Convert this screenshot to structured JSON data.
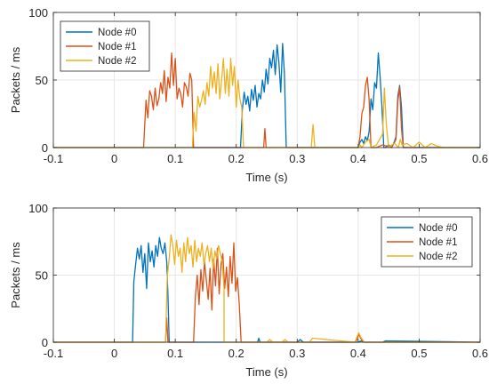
{
  "chart_data": [
    {
      "type": "line",
      "xlabel": "Time (s)",
      "ylabel": "Packets / ms",
      "xlim": [
        -0.1,
        0.6
      ],
      "ylim": [
        0,
        100
      ],
      "xticks": [
        -0.1,
        0,
        0.1,
        0.2,
        0.3,
        0.4,
        0.5,
        0.6
      ],
      "xtick_labels": [
        "-0.1",
        "0",
        "0.1",
        "0.2",
        "0.3",
        "0.4",
        "0.5",
        "0.6"
      ],
      "yticks": [
        0,
        50,
        100
      ],
      "ytick_labels": [
        "0",
        "50",
        "100"
      ],
      "grid": true,
      "legend_position": "top-left",
      "series": [
        {
          "name": "Node #0",
          "color": "#0072BD",
          "x": [
            -0.1,
            0.207,
            0.21,
            0.213,
            0.216,
            0.219,
            0.222,
            0.225,
            0.228,
            0.231,
            0.234,
            0.237,
            0.24,
            0.243,
            0.246,
            0.249,
            0.252,
            0.255,
            0.258,
            0.261,
            0.264,
            0.267,
            0.27,
            0.273,
            0.276,
            0.279,
            0.282,
            0.4,
            0.403,
            0.406,
            0.409,
            0.412,
            0.415,
            0.418,
            0.421,
            0.424,
            0.427,
            0.43,
            0.433,
            0.436,
            0.439,
            0.442,
            0.445,
            0.45,
            0.455,
            0.459,
            0.462,
            0.465,
            0.468,
            0.471,
            0.474,
            0.48,
            0.6
          ],
          "y": [
            0,
            0,
            28,
            41,
            32,
            38,
            27,
            43,
            35,
            46,
            30,
            40,
            36,
            50,
            41,
            58,
            47,
            66,
            59,
            72,
            54,
            76,
            63,
            41,
            77,
            55,
            0,
            0,
            4,
            6,
            3,
            8,
            5,
            12,
            36,
            28,
            48,
            44,
            70,
            52,
            30,
            0,
            0,
            2,
            0,
            4,
            8,
            38,
            46,
            30,
            0,
            0,
            0
          ]
        },
        {
          "name": "Node #1",
          "color": "#D95319",
          "x": [
            -0.1,
            0.048,
            0.052,
            0.055,
            0.058,
            0.061,
            0.064,
            0.067,
            0.07,
            0.073,
            0.076,
            0.079,
            0.082,
            0.085,
            0.088,
            0.091,
            0.094,
            0.097,
            0.1,
            0.103,
            0.106,
            0.109,
            0.112,
            0.115,
            0.118,
            0.121,
            0.124,
            0.127,
            0.13,
            0.2,
            0.245,
            0.247,
            0.249,
            0.4,
            0.403,
            0.406,
            0.409,
            0.412,
            0.415,
            0.418,
            0.421,
            0.43,
            0.44,
            0.455,
            0.462,
            0.465,
            0.468,
            0.471,
            0.474,
            0.6
          ],
          "y": [
            0,
            0,
            35,
            22,
            42,
            38,
            28,
            44,
            31,
            36,
            48,
            40,
            57,
            34,
            52,
            44,
            70,
            46,
            66,
            36,
            44,
            40,
            30,
            48,
            45,
            38,
            55,
            50,
            0,
            0,
            0,
            14,
            0,
            0,
            8,
            25,
            30,
            46,
            52,
            35,
            0,
            0,
            2,
            0,
            6,
            34,
            45,
            14,
            0,
            0
          ]
        },
        {
          "name": "Node #2",
          "color": "#EDB120",
          "x": [
            -0.1,
            0.128,
            0.131,
            0.134,
            0.137,
            0.14,
            0.143,
            0.146,
            0.149,
            0.152,
            0.155,
            0.158,
            0.161,
            0.164,
            0.167,
            0.17,
            0.173,
            0.176,
            0.179,
            0.182,
            0.185,
            0.188,
            0.191,
            0.194,
            0.197,
            0.2,
            0.203,
            0.206,
            0.209,
            0.212,
            0.32,
            0.323,
            0.326,
            0.329,
            0.4,
            0.403,
            0.406,
            0.412,
            0.418,
            0.421,
            0.43,
            0.44,
            0.443,
            0.446,
            0.45,
            0.455,
            0.46,
            0.466,
            0.469,
            0.472,
            0.48,
            0.49,
            0.5,
            0.51,
            0.52,
            0.53,
            0.54,
            0.6
          ],
          "y": [
            0,
            0,
            26,
            12,
            38,
            30,
            35,
            42,
            32,
            48,
            38,
            60,
            44,
            56,
            40,
            62,
            36,
            50,
            66,
            40,
            58,
            38,
            66,
            46,
            60,
            30,
            50,
            36,
            30,
            0,
            0,
            0,
            17,
            0,
            0,
            2,
            0,
            4,
            6,
            0,
            2,
            10,
            44,
            18,
            0,
            2,
            3,
            0,
            6,
            2,
            3,
            0,
            4,
            0,
            3,
            1,
            0,
            0
          ]
        }
      ]
    },
    {
      "type": "line",
      "xlabel": "Time (s)",
      "ylabel": "Packets / ms",
      "xlim": [
        -0.1,
        0.6
      ],
      "ylim": [
        0,
        100
      ],
      "xticks": [
        -0.1,
        0,
        0.1,
        0.2,
        0.3,
        0.4,
        0.5,
        0.6
      ],
      "xtick_labels": [
        "-0.1",
        "0",
        "0.1",
        "0.2",
        "0.3",
        "0.4",
        "0.5",
        "0.6"
      ],
      "yticks": [
        0,
        50,
        100
      ],
      "ytick_labels": [
        "0",
        "50",
        "100"
      ],
      "grid": true,
      "legend_position": "top-right",
      "series": [
        {
          "name": "Node #0",
          "color": "#0072BD",
          "x": [
            -0.1,
            0.03,
            0.032,
            0.035,
            0.038,
            0.041,
            0.044,
            0.047,
            0.05,
            0.053,
            0.056,
            0.059,
            0.062,
            0.065,
            0.068,
            0.071,
            0.074,
            0.077,
            0.08,
            0.083,
            0.086,
            0.088,
            0.09,
            0.235,
            0.237,
            0.239,
            0.3,
            0.305,
            0.31,
            0.4,
            0.405,
            0.41,
            0.44,
            0.445,
            0.6
          ],
          "y": [
            0,
            0,
            45,
            58,
            70,
            62,
            72,
            52,
            66,
            40,
            74,
            60,
            68,
            56,
            72,
            64,
            78,
            70,
            66,
            74,
            60,
            35,
            0,
            0,
            3,
            0,
            0,
            2,
            0,
            0,
            1,
            0,
            0,
            1,
            0
          ]
        },
        {
          "name": "Node #1",
          "color": "#D95319",
          "x": [
            -0.1,
            0.084,
            0.086,
            0.088,
            0.09,
            0.13,
            0.133,
            0.136,
            0.139,
            0.142,
            0.145,
            0.148,
            0.151,
            0.154,
            0.157,
            0.16,
            0.163,
            0.166,
            0.169,
            0.172,
            0.175,
            0.178,
            0.181,
            0.184,
            0.187,
            0.19,
            0.193,
            0.196,
            0.199,
            0.202,
            0.205,
            0.208,
            0.395,
            0.398,
            0.401,
            0.404,
            0.407,
            0.41,
            0.6
          ],
          "y": [
            0,
            0,
            18,
            0,
            0,
            0,
            34,
            50,
            28,
            54,
            38,
            60,
            46,
            32,
            55,
            24,
            62,
            42,
            70,
            36,
            58,
            66,
            40,
            56,
            34,
            64,
            44,
            74,
            38,
            48,
            28,
            0,
            0,
            2,
            6,
            3,
            1,
            0,
            0
          ]
        },
        {
          "name": "Node #2",
          "color": "#EDB120",
          "x": [
            -0.1,
            0.084,
            0.087,
            0.09,
            0.093,
            0.096,
            0.099,
            0.102,
            0.105,
            0.108,
            0.111,
            0.114,
            0.117,
            0.12,
            0.123,
            0.126,
            0.129,
            0.132,
            0.135,
            0.138,
            0.141,
            0.144,
            0.147,
            0.15,
            0.153,
            0.156,
            0.159,
            0.162,
            0.165,
            0.168,
            0.171,
            0.174,
            0.177,
            0.18,
            0.18,
            0.25,
            0.255,
            0.26,
            0.275,
            0.28,
            0.285,
            0.32,
            0.325,
            0.395,
            0.398,
            0.401,
            0.404,
            0.407,
            0.41,
            0.6
          ],
          "y": [
            0,
            0,
            50,
            62,
            80,
            72,
            58,
            76,
            64,
            70,
            52,
            74,
            60,
            78,
            66,
            72,
            56,
            76,
            60,
            70,
            64,
            74,
            58,
            66,
            72,
            60,
            70,
            55,
            68,
            62,
            72,
            66,
            60,
            40,
            0,
            0,
            2,
            0,
            0,
            2,
            0,
            0,
            3,
            0,
            4,
            7,
            4,
            2,
            0,
            0
          ]
        }
      ]
    }
  ]
}
